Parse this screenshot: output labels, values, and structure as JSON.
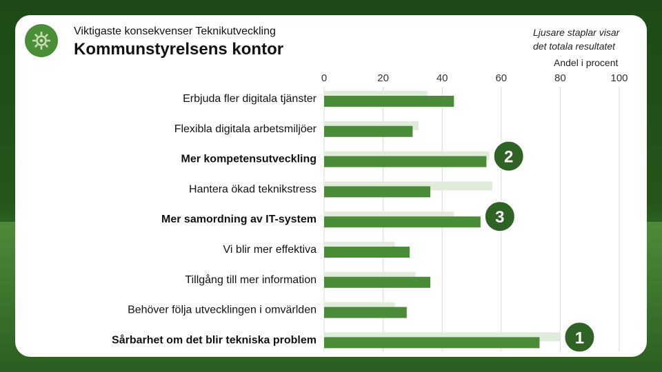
{
  "header": {
    "subtitle": "Viktigaste konsekvenser Teknikutveckling",
    "title": "Kommunstyrelsens kontor",
    "note": "Ljusare staplar visar\ndet totala resultatet",
    "logo_icon": "gear-icon"
  },
  "colors": {
    "primary_bar": "#4a8c37",
    "total_bar": "#e1ebdb",
    "badge": "#2f6325",
    "grid": "#d9d9d9"
  },
  "chart_data": {
    "type": "bar",
    "orientation": "horizontal",
    "ylabel": "Andel i procent",
    "xlim": [
      0,
      100
    ],
    "xticks": [
      0,
      20,
      40,
      60,
      80,
      100
    ],
    "grid": true,
    "categories": [
      "Erbjuda fler digitala tjänster",
      "Flexibla digitala arbetsmiljöer",
      "Mer kompetensutveckling",
      "Hantera ökad teknikstress",
      "Mer samordning av IT-system",
      "Vi blir mer effektiva",
      "Tillgång till mer information",
      "Behöver följa utvecklingen i omvärlden",
      "Sårbarhet om det blir tekniska problem"
    ],
    "bold_categories": [
      "Mer kompetensutveckling",
      "Mer samordning av IT-system",
      "Sårbarhet om det blir tekniska problem"
    ],
    "series": [
      {
        "values": [
          35,
          32,
          56,
          57,
          44,
          24,
          31,
          24,
          80
        ]
      },
      {
        "values": [
          44,
          30,
          55,
          36,
          53,
          29,
          36,
          28,
          73
        ]
      }
    ],
    "badges": [
      {
        "category": "Mer kompetensutveckling",
        "label": "2"
      },
      {
        "category": "Mer samordning av IT-system",
        "label": "3"
      },
      {
        "category": "Sårbarhet om det blir tekniska problem",
        "label": "1"
      }
    ]
  }
}
